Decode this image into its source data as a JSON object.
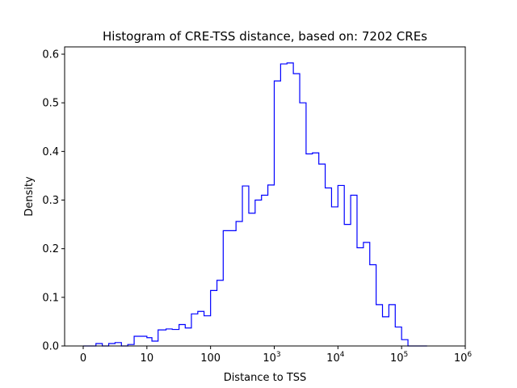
{
  "chart_data": {
    "type": "histogram",
    "title": "Histogram of CRE-TSS distance, based on: 7202 CREs",
    "xlabel": "Distance to TSS",
    "ylabel": "Density",
    "x_scale": "symlog",
    "x_ticks": [
      {
        "value": 0,
        "label": "0"
      },
      {
        "value": 10,
        "label": "10"
      },
      {
        "value": 100,
        "label": "100"
      },
      {
        "value": 1000,
        "label": "10",
        "exp": "3"
      },
      {
        "value": 10000,
        "label": "10",
        "exp": "4"
      },
      {
        "value": 100000,
        "label": "10",
        "exp": "5"
      },
      {
        "value": 1000000,
        "label": "10",
        "exp": "6"
      }
    ],
    "y_ticks": [
      "0.0",
      "0.1",
      "0.2",
      "0.3",
      "0.4",
      "0.5",
      "0.6"
    ],
    "ylim": [
      0,
      0.615
    ],
    "line_color": "#0000ff",
    "histtype": "step",
    "bin_edges": [
      0,
      1,
      2,
      3,
      4,
      5,
      6,
      7,
      8,
      10,
      12,
      15,
      20,
      25,
      32,
      40,
      50,
      63,
      79,
      100,
      126,
      158,
      200,
      251,
      316,
      398,
      501,
      631,
      794,
      1000,
      1259,
      1585,
      1995,
      2512,
      3162,
      3981,
      5012,
      6310,
      7943,
      10000,
      12589,
      15849,
      19953,
      25119,
      31623,
      39811,
      50119,
      63096,
      79433,
      100000,
      125893,
      158489,
      199526,
      251189
    ],
    "densities": [
      0.0,
      0.0,
      0.005,
      0.0,
      0.005,
      0.007,
      0.0,
      0.003,
      0.02,
      0.017,
      0.01,
      0.033,
      0.035,
      0.034,
      0.044,
      0.037,
      0.066,
      0.071,
      0.062,
      0.114,
      0.135,
      0.237,
      0.237,
      0.256,
      0.329,
      0.273,
      0.3,
      0.31,
      0.331,
      0.545,
      0.58,
      0.582,
      0.56,
      0.5,
      0.395,
      0.397,
      0.374,
      0.325,
      0.286,
      0.33,
      0.25,
      0.31,
      0.202,
      0.213,
      0.167,
      0.085,
      0.06,
      0.085,
      0.039,
      0.013,
      0.0,
      0.0,
      0.0
    ]
  }
}
